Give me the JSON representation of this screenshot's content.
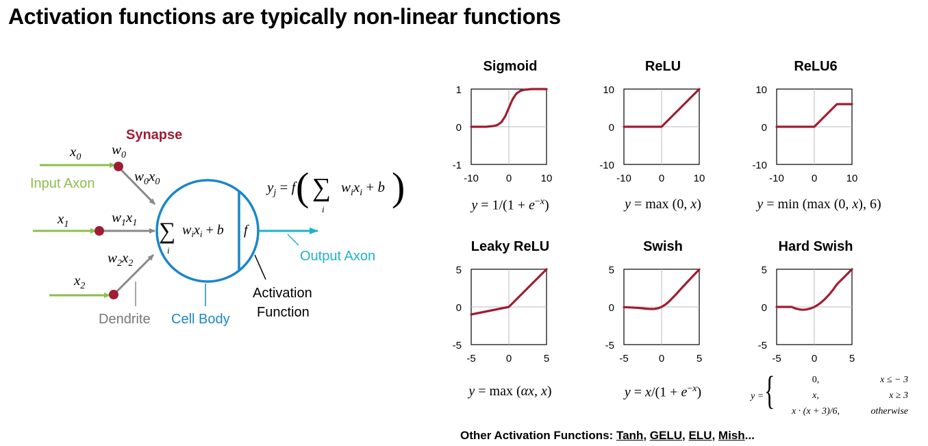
{
  "title": "Activation functions are typically non-linear functions",
  "neuron": {
    "synapse_label": "Synapse",
    "input_axon_label": "Input Axon",
    "output_axon_label": "Output Axon",
    "dendrite_label": "Dendrite",
    "cell_body_label": "Cell Body",
    "activation_label_line1": "Activation",
    "activation_label_line2": "Function",
    "inputs": [
      "x0",
      "x1",
      "x2"
    ],
    "weights": [
      "w0",
      "w1",
      "w2"
    ],
    "products": [
      "w0x0",
      "w1x1",
      "w2x2"
    ],
    "cell_formula": "Σ_i w_i x_i + b",
    "activation_symbol": "f",
    "output_formula": "y_j = f( Σ_i w_i x_i + b )",
    "colors": {
      "synapse": "#a01c32",
      "input_axon": "#8dbd4d",
      "output_axon": "#1fb3c4",
      "cell_body": "#1a86c9",
      "arrow_gray": "#888888",
      "curve": "#a01c32"
    }
  },
  "chart_data": [
    {
      "type": "line",
      "title": "Sigmoid",
      "formula": "y = 1/(1 + e^−x)",
      "xlim": [
        -10,
        10
      ],
      "ylim": [
        -1,
        1
      ],
      "xticks": [
        "-10",
        "0",
        "10"
      ],
      "yticks": [
        "1",
        "0",
        "-1"
      ],
      "x": [
        -10,
        -6,
        -4,
        -3,
        -2,
        -1,
        0,
        1,
        2,
        3,
        4,
        6,
        10
      ],
      "y": [
        0.0,
        0.0,
        0.02,
        0.05,
        0.12,
        0.27,
        0.5,
        0.73,
        0.88,
        0.95,
        0.98,
        1.0,
        1.0
      ]
    },
    {
      "type": "line",
      "title": "ReLU",
      "formula": "y = max (0, x)",
      "xlim": [
        -10,
        10
      ],
      "ylim": [
        -10,
        10
      ],
      "xticks": [
        "-10",
        "0",
        "10"
      ],
      "yticks": [
        "10",
        "0",
        "-10"
      ],
      "x": [
        -10,
        0,
        10
      ],
      "y": [
        0,
        0,
        10
      ]
    },
    {
      "type": "line",
      "title": "ReLU6",
      "formula": "y = min (max (0, x), 6)",
      "xlim": [
        -10,
        10
      ],
      "ylim": [
        -10,
        10
      ],
      "xticks": [
        "-10",
        "0",
        "10"
      ],
      "yticks": [
        "10",
        "0",
        "-10"
      ],
      "x": [
        -10,
        0,
        6,
        10
      ],
      "y": [
        0,
        0,
        6,
        6
      ]
    },
    {
      "type": "line",
      "title": "Leaky ReLU",
      "formula": "y = max (αx, x)",
      "xlim": [
        -5,
        5
      ],
      "ylim": [
        -5,
        5
      ],
      "xticks": [
        "-5",
        "0",
        "5"
      ],
      "yticks": [
        "5",
        "0",
        "-5"
      ],
      "x": [
        -5,
        0,
        5
      ],
      "y": [
        -1,
        0,
        5
      ]
    },
    {
      "type": "line",
      "title": "Swish",
      "formula": "y = x/(1 + e^−x)",
      "xlim": [
        -5,
        5
      ],
      "ylim": [
        -5,
        5
      ],
      "xticks": [
        "-5",
        "0",
        "5"
      ],
      "yticks": [
        "5",
        "0",
        "-5"
      ],
      "x": [
        -5,
        -4,
        -3,
        -2,
        -1.5,
        -1,
        -0.5,
        0,
        0.5,
        1,
        2,
        3,
        4,
        5
      ],
      "y": [
        -0.03,
        -0.07,
        -0.14,
        -0.24,
        -0.27,
        -0.27,
        -0.19,
        0,
        0.31,
        0.73,
        1.76,
        2.86,
        3.93,
        4.97
      ]
    },
    {
      "type": "line",
      "title": "Hard Swish",
      "formula_rows": [
        {
          "value": "0,",
          "condition": "x ≤ − 3"
        },
        {
          "value": "x,",
          "condition": "x ≥ 3"
        },
        {
          "value": "x · (x + 3)/6,",
          "condition": "otherwise"
        }
      ],
      "formula_lhs": "y =",
      "xlim": [
        -5,
        5
      ],
      "ylim": [
        -5,
        5
      ],
      "xticks": [
        "-5",
        "0",
        "5"
      ],
      "yticks": [
        "5",
        "0",
        "-5"
      ],
      "x": [
        -5,
        -3,
        -2.5,
        -2,
        -1.5,
        -1,
        -0.5,
        0,
        0.5,
        1,
        1.5,
        2,
        2.5,
        3,
        4,
        5
      ],
      "y": [
        0,
        0,
        -0.21,
        -0.33,
        -0.38,
        -0.33,
        -0.21,
        0,
        0.29,
        0.67,
        1.13,
        1.67,
        2.29,
        3,
        4,
        5
      ]
    }
  ],
  "other": {
    "prefix": "Other Activation Functions:",
    "items": [
      "Tanh",
      "GELU",
      "ELU",
      "Mish"
    ],
    "suffix": "..."
  }
}
